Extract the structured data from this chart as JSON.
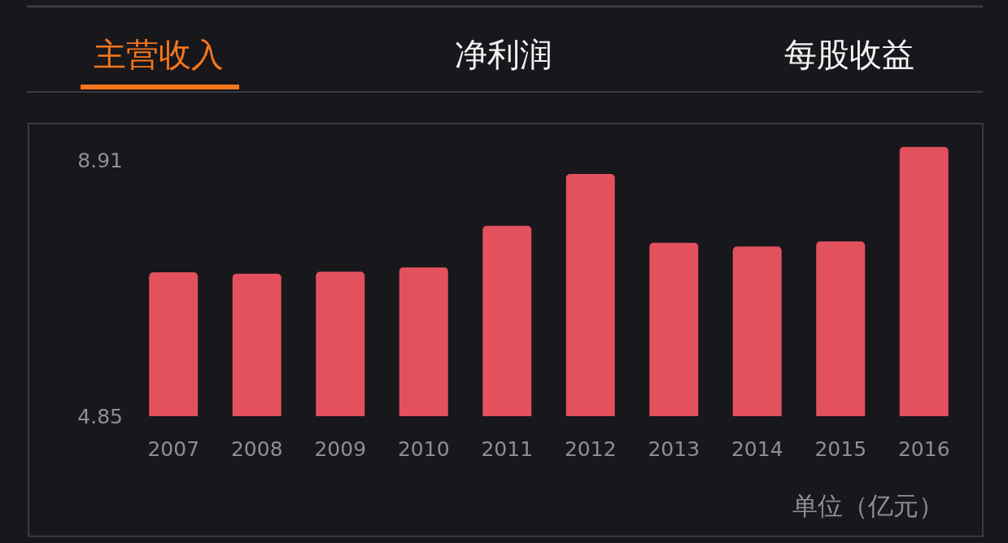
{
  "chart_data": {
    "type": "bar",
    "title": "主营收入",
    "annotations": [
      "净利润",
      "每股收益",
      "单位（亿元）"
    ],
    "categories": [
      "2007",
      "2008",
      "2009",
      "2010",
      "2011",
      "2012",
      "2013",
      "2014",
      "2015",
      "2016"
    ],
    "values": [
      7.13,
      7.11,
      7.14,
      7.21,
      7.87,
      8.69,
      7.6,
      7.54,
      7.62,
      9.12
    ],
    "color": "#e3515d",
    "ylim": [
      4.85,
      9.49
    ],
    "yticks": [
      4.85,
      8.91
    ]
  }
}
